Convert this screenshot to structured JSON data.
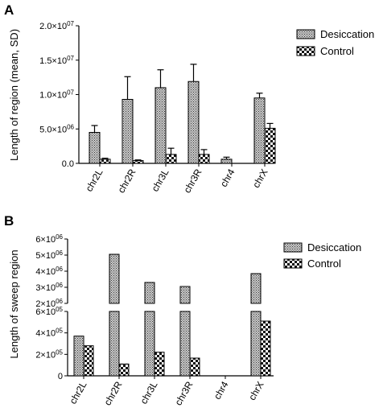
{
  "chart_data": [
    {
      "panel": "A",
      "type": "bar",
      "ylabel": "Length of region (mean, SD)",
      "ylim": [
        0,
        20000000
      ],
      "ytick_values": [
        0,
        5000000,
        10000000,
        15000000,
        20000000
      ],
      "ytick_labels": [
        "0.0",
        "5.0×10⁰⁶",
        "1.0×10⁰⁷",
        "1.5×10⁰⁷",
        "2.0×10⁰⁷"
      ],
      "categories": [
        "chr2L",
        "chr2R",
        "chr3L",
        "chr3R",
        "chr4",
        "chrX"
      ],
      "series": [
        {
          "name": "Desiccation",
          "values": [
            4500000,
            9300000,
            11000000,
            11900000,
            600000,
            9500000
          ],
          "errors": [
            1000000,
            3300000,
            2600000,
            2500000,
            300000,
            700000
          ]
        },
        {
          "name": "Control",
          "values": [
            600000,
            400000,
            1300000,
            1300000,
            0,
            5100000
          ],
          "errors": [
            150000,
            100000,
            900000,
            700000,
            0,
            700000
          ]
        }
      ],
      "legend_position": "top-right",
      "grid": false
    },
    {
      "panel": "B",
      "type": "bar",
      "ylabel": "Length of sweep region",
      "broken_axis": true,
      "ylim_lower": [
        0,
        600000
      ],
      "ylim_upper": [
        2000000,
        6000000
      ],
      "ytick_lower_values": [
        0,
        200000,
        400000,
        600000
      ],
      "ytick_lower_labels": [
        "0",
        "2×10⁰⁵",
        "4×10⁰⁵",
        "6×10⁰⁵"
      ],
      "ytick_upper_values": [
        2000000,
        3000000,
        4000000,
        5000000,
        6000000
      ],
      "ytick_upper_labels": [
        "2×10⁰⁶",
        "3×10⁰⁶",
        "4×10⁰⁶",
        "5×10⁰⁶",
        "6×10⁰⁶"
      ],
      "categories": [
        "chr2L",
        "chr2R",
        "chr3L",
        "chr3R",
        "chr4",
        "chrX"
      ],
      "series": [
        {
          "name": "Desiccation",
          "values": [
            370000,
            5050000,
            3300000,
            3050000,
            0,
            3850000
          ]
        },
        {
          "name": "Control",
          "values": [
            280000,
            110000,
            220000,
            165000,
            0,
            510000
          ]
        }
      ],
      "legend_position": "top-right",
      "grid": false
    }
  ]
}
